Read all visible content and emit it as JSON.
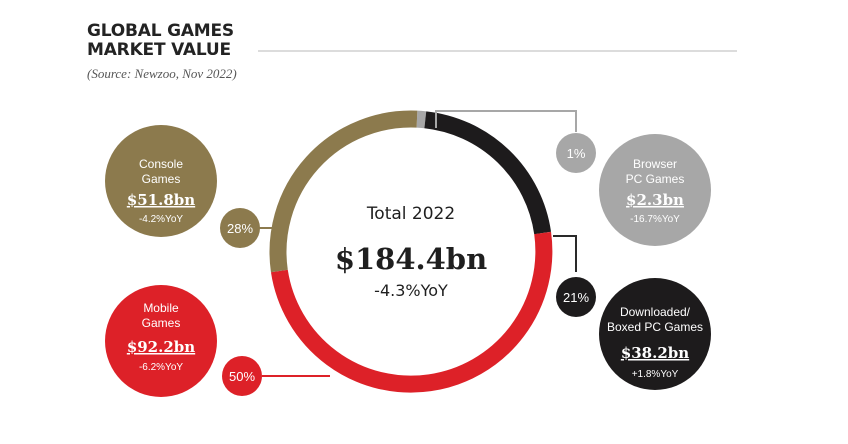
{
  "header": {
    "title_line1": "GLOBAL GAMES",
    "title_line2": "MARKET VALUE",
    "source": "(Source: Newzoo, Nov 2022)"
  },
  "chart_data": {
    "type": "pie",
    "center": {
      "label": "Total 2022",
      "value": "$184.4bn",
      "change": "-4.3%YoY"
    },
    "slices": [
      {
        "key": "browser",
        "name": "Browser PC Games",
        "share": 1,
        "share_label": "1%",
        "value": "$2.3bn",
        "yoy": "-16.7%YoY",
        "color": "#a7a7a7"
      },
      {
        "key": "downloaded",
        "name": "Downloaded/ Boxed PC Games",
        "share": 21,
        "share_label": "21%",
        "value": "$38.2bn",
        "yoy": "+1.8%YoY",
        "color": "#1d1b1c"
      },
      {
        "key": "mobile",
        "name": "Mobile Games",
        "share": 50,
        "share_label": "50%",
        "value": "$92.2bn",
        "yoy": "-6.2%YoY",
        "color": "#dd2128"
      },
      {
        "key": "console",
        "name": "Console Games",
        "share": 28,
        "share_label": "28%",
        "value": "$51.8bn",
        "yoy": "-4.2%YoY",
        "color": "#8c7a4d"
      }
    ]
  }
}
